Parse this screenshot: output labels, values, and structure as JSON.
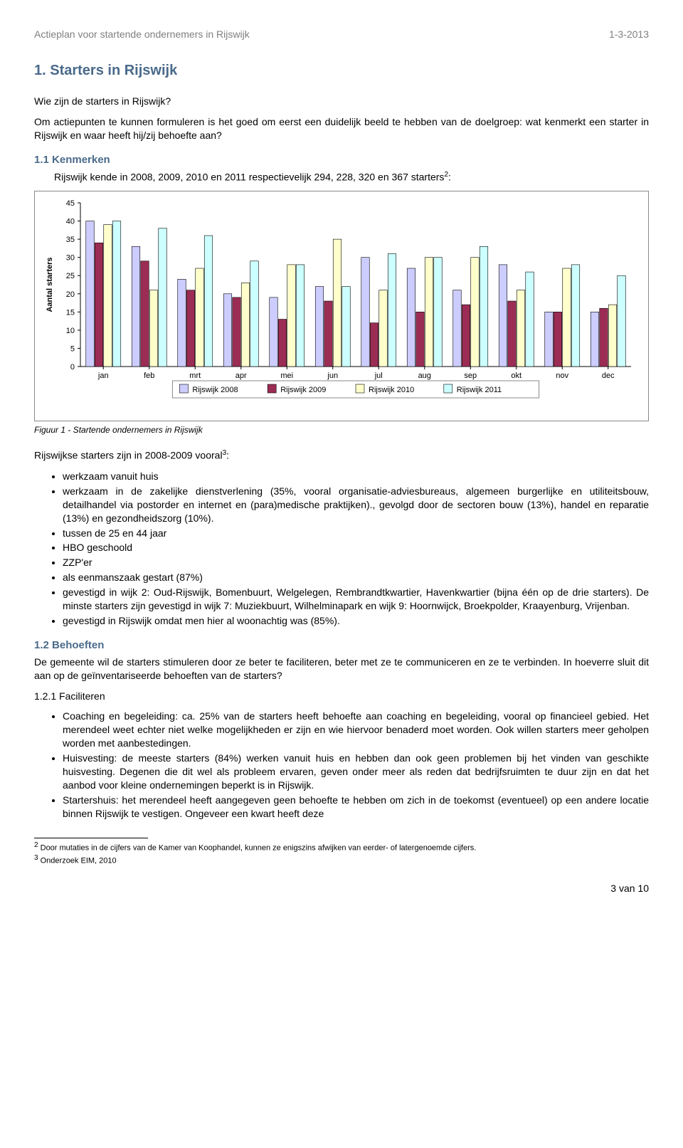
{
  "header": {
    "title": "Actieplan voor startende ondernemers in Rijswijk",
    "date": "1-3-2013"
  },
  "h1": "1. Starters in Rijswijk",
  "intro1": "Wie zijn de starters in Rijswijk?",
  "intro2": "Om actiepunten te kunnen formuleren is het goed om eerst een duidelijk beeld te hebben van de doelgroep: wat kenmerkt een starter in Rijswijk en waar heeft hij/zij behoefte aan?",
  "h2_kenmerken": "1.1 Kenmerken",
  "kenmerken_text": "Rijswijk kende in 2008, 2009, 2010 en 2011 respectievelijk 294, 228, 320 en 367 starters",
  "kenmerken_sup": "2",
  "kenmerken_tail": ":",
  "chart": {
    "type": "bar",
    "categories": [
      "jan",
      "feb",
      "mrt",
      "apr",
      "mei",
      "jun",
      "jul",
      "aug",
      "sep",
      "okt",
      "nov",
      "dec"
    ],
    "series": [
      {
        "name": "Rijswijk 2008",
        "color": "#ccccff",
        "values": [
          40,
          33,
          24,
          20,
          19,
          22,
          30,
          27,
          21,
          28,
          15,
          15
        ]
      },
      {
        "name": "Rijswijk 2009",
        "color": "#9b2d55",
        "values": [
          34,
          29,
          21,
          19,
          13,
          18,
          12,
          15,
          17,
          18,
          15,
          16
        ]
      },
      {
        "name": "Rijswijk 2010",
        "color": "#ffffcc",
        "values": [
          39,
          21,
          27,
          23,
          28,
          35,
          21,
          30,
          30,
          21,
          27,
          17
        ]
      },
      {
        "name": "Rijswijk 2011",
        "color": "#ccffff",
        "values": [
          40,
          38,
          36,
          29,
          28,
          22,
          31,
          30,
          33,
          26,
          28,
          25
        ]
      }
    ],
    "ylabel": "Aantal starters",
    "ylim": [
      0,
      45
    ],
    "ytick_step": 5,
    "background": "#ffffff",
    "border_color": "#888888",
    "axis_color": "#000000",
    "tick_font": 11,
    "label_font": 11,
    "legend_box_color": "#888888"
  },
  "figure_caption": "Figuur 1 - Startende ondernemers in Rijswijk",
  "after_chart": "Rijswijkse starters zijn in 2008-2009 vooral",
  "after_chart_sup": "3",
  "after_chart_tail": ":",
  "bullets1": [
    "werkzaam vanuit huis",
    "werkzaam in de zakelijke dienstverlening (35%, vooral organisatie-adviesbureaus, algemeen burgerlijke en utiliteitsbouw, detailhandel via postorder en internet en (para)medische praktijken)., gevolgd door de sectoren bouw (13%), handel en reparatie (13%) en gezondheidszorg (10%).",
    "tussen de 25 en 44 jaar",
    "HBO geschoold",
    "ZZP'er",
    "als eenmanszaak gestart (87%)",
    "gevestigd in wijk 2: Oud-Rijswijk, Bomenbuurt, Welgelegen, Rembrandtkwartier, Havenkwartier (bijna één op de drie starters). De minste starters zijn gevestigd in wijk 7: Muziekbuurt, Wilhelminapark en wijk 9: Hoornwijck, Broekpolder, Kraayenburg, Vrijenban.",
    "gevestigd in Rijswijk omdat men hier al woonachtig was (85%)."
  ],
  "h2_behoeften": "1.2 Behoeften",
  "behoeften_text": "De gemeente wil de starters stimuleren door ze beter te faciliteren, beter met ze te communiceren en ze te verbinden. In hoeverre sluit dit aan op de geïnventariseerde behoeften van de starters?",
  "h3_faciliteren": "1.2.1 Faciliteren",
  "bullets2": [
    "Coaching en begeleiding: ca. 25% van de starters heeft behoefte aan coaching en begeleiding, vooral op financieel gebied. Het merendeel weet echter niet welke mogelijkheden er zijn en wie hiervoor benaderd moet worden. Ook willen starters meer geholpen worden met aanbestedingen.",
    "Huisvesting: de meeste starters (84%) werken vanuit huis en hebben dan ook geen problemen bij het vinden van geschikte huisvesting. Degenen die dit wel als probleem ervaren, geven onder meer als reden dat bedrijfsruimten te duur zijn en dat het aanbod voor kleine ondernemingen beperkt is in Rijswijk.",
    "Startershuis: het merendeel heeft aangegeven geen behoefte te hebben om zich in de toekomst (eventueel) op een andere locatie binnen Rijswijk te vestigen. Ongeveer een kwart heeft deze"
  ],
  "footnotes": {
    "f2_sup": "2",
    "f2": " Door mutaties in de cijfers van de Kamer van Koophandel, kunnen ze enigszins afwijken van eerder- of latergenoemde cijfers.",
    "f3_sup": "3",
    "f3": " Onderzoek EIM, 2010"
  },
  "page_number": "3 van 10"
}
